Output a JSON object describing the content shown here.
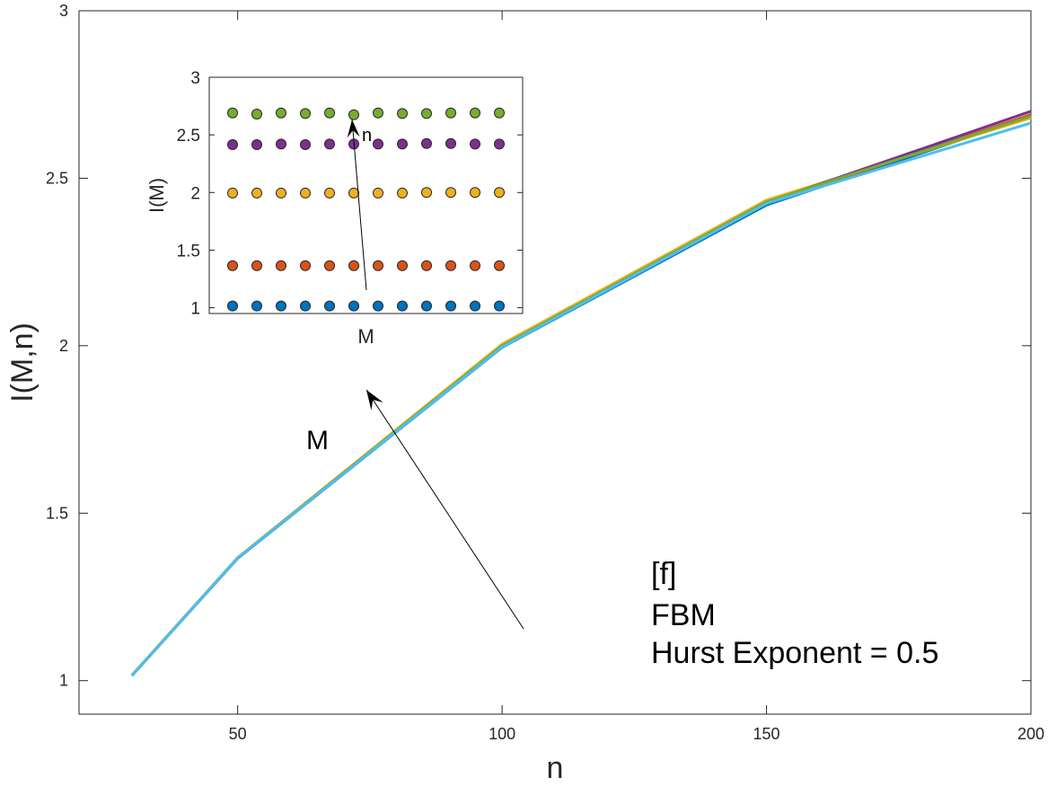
{
  "chart_data": [
    {
      "type": "line",
      "xlabel": "n",
      "ylabel": "I(M,n)",
      "xlim": [
        20,
        200
      ],
      "ylim": [
        0.9,
        3
      ],
      "xticks": [
        "50",
        "100",
        "150",
        "200"
      ],
      "yticks": [
        "1",
        "1.5",
        "2",
        "2.5",
        "3"
      ],
      "x": [
        30,
        50,
        100,
        150,
        200
      ],
      "series": [
        {
          "color": "#0072BD",
          "values": [
            1.015,
            1.365,
            1.995,
            2.42,
            2.685
          ]
        },
        {
          "color": "#D95319",
          "values": [
            1.015,
            1.366,
            1.997,
            2.425,
            2.69
          ]
        },
        {
          "color": "#EDB120",
          "values": [
            1.016,
            1.367,
            2.005,
            2.435,
            2.68
          ]
        },
        {
          "color": "#7E2F8E",
          "values": [
            1.015,
            1.366,
            1.998,
            2.428,
            2.7
          ]
        },
        {
          "color": "#77AC30",
          "values": [
            1.016,
            1.367,
            2.0,
            2.43,
            2.685
          ]
        },
        {
          "color": "#4DBEEE",
          "values": [
            1.015,
            1.366,
            1.996,
            2.425,
            2.665
          ]
        }
      ],
      "annotations": {
        "arrow_label": "M",
        "text_lines": [
          "[f]",
          "FBM",
          "Hurst Exponent = 0.5"
        ]
      },
      "grid": false,
      "box": true
    },
    {
      "type": "scatter",
      "xlabel": "M",
      "ylabel": "I(M)",
      "ylim": [
        0.95,
        3
      ],
      "yticks": [
        "1",
        "1.5",
        "2",
        "2.5",
        "3"
      ],
      "xticks": [],
      "x": [
        1,
        2,
        3,
        4,
        5,
        6,
        7,
        8,
        9,
        10,
        11,
        12
      ],
      "series": [
        {
          "color": "#0072BD",
          "values": [
            1.015,
            1.015,
            1.015,
            1.015,
            1.015,
            1.015,
            1.015,
            1.015,
            1.015,
            1.015,
            1.015,
            1.015
          ]
        },
        {
          "color": "#D95319",
          "values": [
            1.365,
            1.365,
            1.365,
            1.365,
            1.365,
            1.365,
            1.365,
            1.365,
            1.365,
            1.365,
            1.365,
            1.365
          ]
        },
        {
          "color": "#EDB120",
          "values": [
            1.995,
            1.995,
            1.995,
            1.995,
            1.995,
            1.995,
            1.995,
            1.995,
            2.0,
            2.0,
            2.0,
            2.0
          ]
        },
        {
          "color": "#7E2F8E",
          "values": [
            2.415,
            2.415,
            2.42,
            2.415,
            2.42,
            2.42,
            2.42,
            2.42,
            2.425,
            2.425,
            2.42,
            2.42
          ]
        },
        {
          "color": "#77AC30",
          "values": [
            2.69,
            2.68,
            2.69,
            2.685,
            2.69,
            2.675,
            2.69,
            2.685,
            2.685,
            2.69,
            2.69,
            2.69
          ]
        }
      ],
      "annotations": {
        "arrow_label": "n"
      },
      "box": true
    }
  ]
}
